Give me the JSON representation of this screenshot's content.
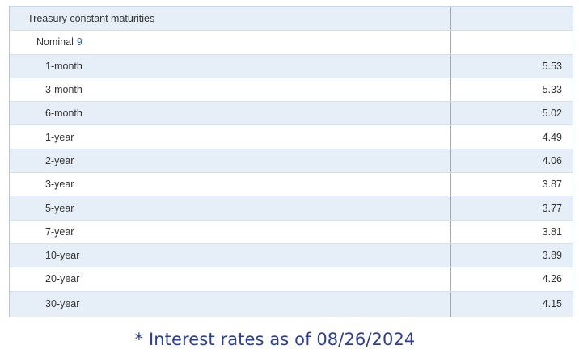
{
  "table": {
    "section_label": "Treasury constant maturities",
    "subsection_label": "Nominal",
    "subsection_footnote": "9",
    "rows": [
      {
        "term": "1-month",
        "rate": "5.53"
      },
      {
        "term": "3-month",
        "rate": "5.33"
      },
      {
        "term": "6-month",
        "rate": "5.02"
      },
      {
        "term": "1-year",
        "rate": "4.49"
      },
      {
        "term": "2-year",
        "rate": "4.06"
      },
      {
        "term": "3-year",
        "rate": "3.87"
      },
      {
        "term": "5-year",
        "rate": "3.77"
      },
      {
        "term": "7-year",
        "rate": "3.81"
      },
      {
        "term": "10-year",
        "rate": "3.89"
      },
      {
        "term": "20-year",
        "rate": "4.26"
      },
      {
        "term": "30-year",
        "rate": "4.15"
      }
    ]
  },
  "footnote": "* Interest rates as of 08/26/2024",
  "colors": {
    "shaded_row": "#e6eef7",
    "footnote_text": "#2d3d96",
    "footnote_link": "#2f5ea6"
  }
}
